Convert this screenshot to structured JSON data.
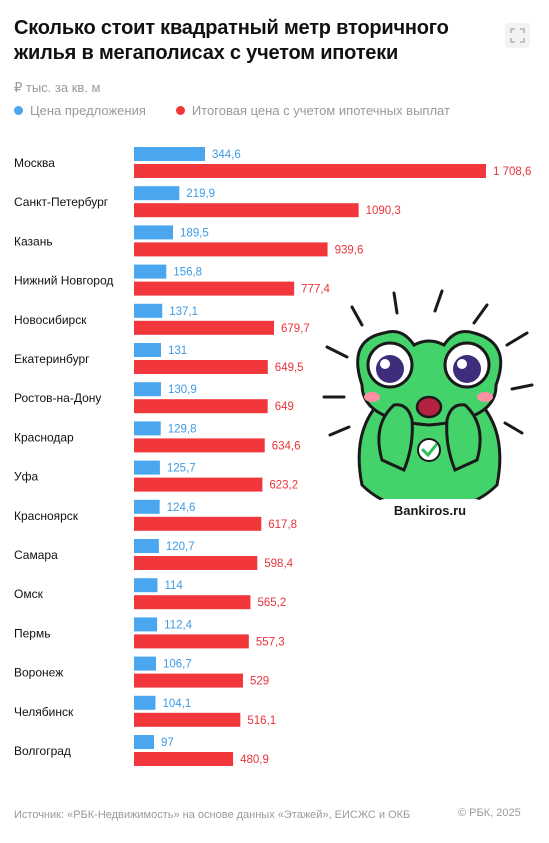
{
  "header": {
    "title": "Сколько стоит квадратный метр вторичного жилья в мегаполисах с учетом ипотеки",
    "unit": "₽ тыс. за кв. м"
  },
  "colors": {
    "blue": "#4aa6ef",
    "red": "#f2373c",
    "blue_text": "#3d9be6",
    "red_text": "#e8343a"
  },
  "chart_data": {
    "type": "bar",
    "orientation": "horizontal",
    "categories": [
      "Москва",
      "Санкт-Петербург",
      "Казань",
      "Нижний Новгород",
      "Новосибирск",
      "Екатеринбург",
      "Ростов-на-Дону",
      "Краснодар",
      "Уфа",
      "Красноярск",
      "Самара",
      "Омск",
      "Пермь",
      "Воронеж",
      "Челябинск",
      "Волгоград"
    ],
    "series": [
      {
        "name": "Цена предложения",
        "values": [
          344.6,
          219.9,
          189.5,
          156.8,
          137.1,
          131,
          130.9,
          129.8,
          125.7,
          124.6,
          120.7,
          114,
          112.4,
          106.7,
          104.1,
          97
        ],
        "labels": [
          "344,6",
          "219,9",
          "189,5",
          "156,8",
          "137,1",
          "131",
          "130,9",
          "129,8",
          "125,7",
          "124,6",
          "120,7",
          "114",
          "112,4",
          "106,7",
          "104,1",
          "97"
        ]
      },
      {
        "name": "Итоговая цена с учетом ипотечных выплат",
        "values": [
          1708.6,
          1090.3,
          939.6,
          777.4,
          679.7,
          649.5,
          649,
          634.6,
          623.2,
          617.8,
          598.4,
          565.2,
          557.3,
          529,
          516.1,
          480.9
        ],
        "labels": [
          "1 708,6",
          "1090,3",
          "939,6",
          "777,4",
          "679,7",
          "649,5",
          "649",
          "634,6",
          "623,2",
          "617,8",
          "598,4",
          "565,2",
          "557,3",
          "529",
          "516,1",
          "480,9"
        ]
      }
    ],
    "xlim": [
      0,
      1708.6
    ],
    "grid": false,
    "legend_position": "top-left"
  },
  "footer": {
    "source": "Источник: «РБК-Недвижимость» на основе данных «Этажей», ЕИСЖС и ОКБ",
    "copyright": "© РБК, 2025"
  },
  "watermark": {
    "text": "Bankiros.ru"
  }
}
